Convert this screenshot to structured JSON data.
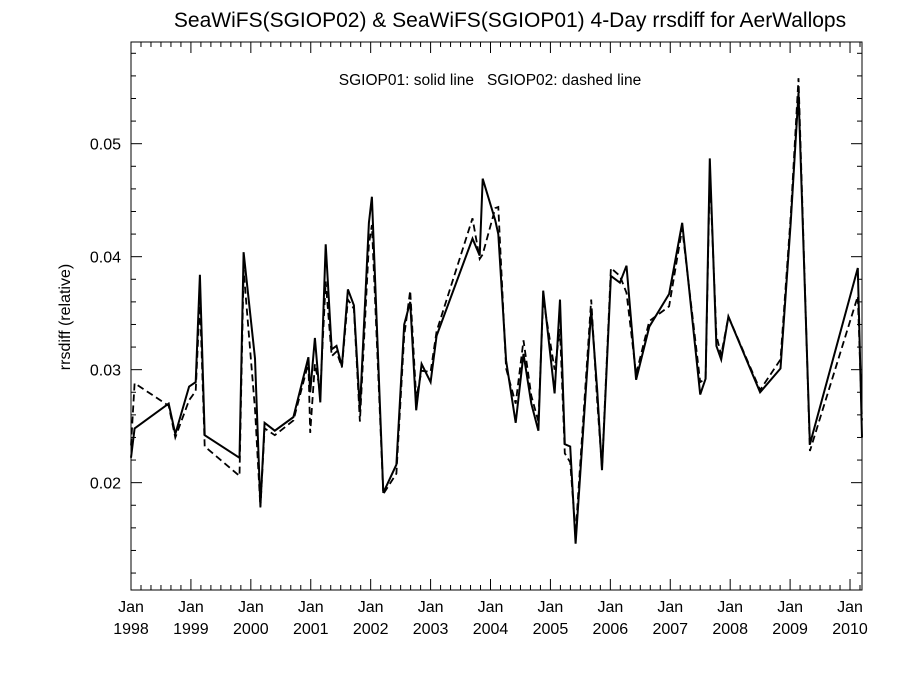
{
  "chart_data": {
    "type": "line",
    "title": "SeaWiFS(SGIOP02) & SeaWiFS(SGIOP01) 4-Day rrsdiff for AerWallops",
    "legend_text": "SGIOP01: solid line   SGIOP02: dashed line",
    "xlabel": "",
    "ylabel": "rrsdiff (relative)",
    "xlim": [
      1998.0,
      2010.2
    ],
    "ylim": [
      0.0105,
      0.059
    ],
    "grid": false,
    "x_ticks": [
      {
        "value": 1998,
        "line1": "Jan",
        "line2": "1998"
      },
      {
        "value": 1999,
        "line1": "Jan",
        "line2": "1999"
      },
      {
        "value": 2000,
        "line1": "Jan",
        "line2": "2000"
      },
      {
        "value": 2001,
        "line1": "Jan",
        "line2": "2001"
      },
      {
        "value": 2002,
        "line1": "Jan",
        "line2": "2002"
      },
      {
        "value": 2003,
        "line1": "Jan",
        "line2": "2003"
      },
      {
        "value": 2004,
        "line1": "Jan",
        "line2": "2004"
      },
      {
        "value": 2005,
        "line1": "Jan",
        "line2": "2005"
      },
      {
        "value": 2006,
        "line1": "Jan",
        "line2": "2006"
      },
      {
        "value": 2007,
        "line1": "Jan",
        "line2": "2007"
      },
      {
        "value": 2008,
        "line1": "Jan",
        "line2": "2008"
      },
      {
        "value": 2009,
        "line1": "Jan",
        "line2": "2009"
      },
      {
        "value": 2010,
        "line1": "Jan",
        "line2": "2010"
      }
    ],
    "y_ticks": [
      {
        "value": 0.02,
        "label": "0.02"
      },
      {
        "value": 0.03,
        "label": "0.03"
      },
      {
        "value": 0.04,
        "label": "0.04"
      },
      {
        "value": 0.05,
        "label": "0.05"
      }
    ],
    "series": [
      {
        "style": "solid",
        "color": "#000000",
        "points": [
          [
            1998.0,
            0.0222
          ],
          [
            1998.06,
            0.0248
          ],
          [
            1998.63,
            0.027
          ],
          [
            1998.74,
            0.0243
          ],
          [
            1998.97,
            0.0285
          ],
          [
            1999.08,
            0.0289
          ],
          [
            1999.15,
            0.0384
          ],
          [
            1999.23,
            0.0242
          ],
          [
            1999.81,
            0.0222
          ],
          [
            1999.88,
            0.0404
          ],
          [
            2000.07,
            0.031
          ],
          [
            2000.16,
            0.0179
          ],
          [
            2000.23,
            0.0253
          ],
          [
            2000.4,
            0.0246
          ],
          [
            2000.71,
            0.0258
          ],
          [
            2000.96,
            0.0311
          ],
          [
            2000.99,
            0.028
          ],
          [
            2001.07,
            0.0328
          ],
          [
            2001.16,
            0.0271
          ],
          [
            2001.25,
            0.0411
          ],
          [
            2001.35,
            0.0318
          ],
          [
            2001.43,
            0.0321
          ],
          [
            2001.52,
            0.0303
          ],
          [
            2001.62,
            0.0371
          ],
          [
            2001.72,
            0.0357
          ],
          [
            2001.82,
            0.0264
          ],
          [
            2001.97,
            0.043
          ],
          [
            2002.02,
            0.0453
          ],
          [
            2002.21,
            0.0191
          ],
          [
            2002.43,
            0.0216
          ],
          [
            2002.56,
            0.034
          ],
          [
            2002.66,
            0.036
          ],
          [
            2002.76,
            0.0264
          ],
          [
            2002.85,
            0.0305
          ],
          [
            2003.0,
            0.0289
          ],
          [
            2003.1,
            0.033
          ],
          [
            2003.7,
            0.0416
          ],
          [
            2003.82,
            0.0401
          ],
          [
            2003.87,
            0.0469
          ],
          [
            2004.08,
            0.0432
          ],
          [
            2004.13,
            0.042
          ],
          [
            2004.26,
            0.0308
          ],
          [
            2004.42,
            0.0253
          ],
          [
            2004.55,
            0.0314
          ],
          [
            2004.68,
            0.027
          ],
          [
            2004.8,
            0.0246
          ],
          [
            2004.88,
            0.037
          ],
          [
            2005.07,
            0.0279
          ],
          [
            2005.16,
            0.0362
          ],
          [
            2005.24,
            0.0234
          ],
          [
            2005.33,
            0.0232
          ],
          [
            2005.42,
            0.0146
          ],
          [
            2005.68,
            0.0353
          ],
          [
            2005.78,
            0.0282
          ],
          [
            2005.86,
            0.0211
          ],
          [
            2006.01,
            0.0383
          ],
          [
            2006.16,
            0.0377
          ],
          [
            2006.27,
            0.0392
          ],
          [
            2006.43,
            0.0291
          ],
          [
            2006.65,
            0.0338
          ],
          [
            2006.98,
            0.0367
          ],
          [
            2007.2,
            0.043
          ],
          [
            2007.5,
            0.0278
          ],
          [
            2007.59,
            0.0292
          ],
          [
            2007.66,
            0.0487
          ],
          [
            2007.77,
            0.0321
          ],
          [
            2007.85,
            0.0309
          ],
          [
            2007.97,
            0.0347
          ],
          [
            2008.5,
            0.028
          ],
          [
            2008.84,
            0.0301
          ],
          [
            2009.01,
            0.043
          ],
          [
            2009.14,
            0.0545
          ],
          [
            2009.33,
            0.0234
          ],
          [
            2010.13,
            0.039
          ],
          [
            2010.2,
            0.024
          ]
        ]
      },
      {
        "style": "dashed",
        "color": "#000000",
        "points": [
          [
            1998.0,
            0.0233
          ],
          [
            1998.06,
            0.0288
          ],
          [
            1998.63,
            0.0268
          ],
          [
            1998.74,
            0.024
          ],
          [
            1998.97,
            0.0273
          ],
          [
            1999.08,
            0.0281
          ],
          [
            1999.15,
            0.0362
          ],
          [
            1999.23,
            0.0232
          ],
          [
            1999.81,
            0.0206
          ],
          [
            1999.88,
            0.0388
          ],
          [
            2000.07,
            0.0265
          ],
          [
            2000.16,
            0.0178
          ],
          [
            2000.23,
            0.0248
          ],
          [
            2000.4,
            0.0242
          ],
          [
            2000.71,
            0.0255
          ],
          [
            2000.96,
            0.0306
          ],
          [
            2000.99,
            0.0244
          ],
          [
            2001.07,
            0.0305
          ],
          [
            2001.16,
            0.0281
          ],
          [
            2001.25,
            0.0378
          ],
          [
            2001.35,
            0.0312
          ],
          [
            2001.43,
            0.0316
          ],
          [
            2001.52,
            0.0302
          ],
          [
            2001.62,
            0.0362
          ],
          [
            2001.72,
            0.0354
          ],
          [
            2001.82,
            0.0254
          ],
          [
            2001.97,
            0.0411
          ],
          [
            2002.02,
            0.0428
          ],
          [
            2002.21,
            0.019
          ],
          [
            2002.43,
            0.0208
          ],
          [
            2002.56,
            0.033
          ],
          [
            2002.66,
            0.037
          ],
          [
            2002.76,
            0.0275
          ],
          [
            2002.85,
            0.0299
          ],
          [
            2003.0,
            0.0298
          ],
          [
            2003.1,
            0.0334
          ],
          [
            2003.7,
            0.0434
          ],
          [
            2003.82,
            0.0398
          ],
          [
            2003.87,
            0.0402
          ],
          [
            2004.08,
            0.0443
          ],
          [
            2004.13,
            0.0444
          ],
          [
            2004.26,
            0.0301
          ],
          [
            2004.42,
            0.027
          ],
          [
            2004.55,
            0.0326
          ],
          [
            2004.68,
            0.0277
          ],
          [
            2004.8,
            0.0254
          ],
          [
            2004.88,
            0.0363
          ],
          [
            2005.07,
            0.03
          ],
          [
            2005.16,
            0.0336
          ],
          [
            2005.24,
            0.0226
          ],
          [
            2005.33,
            0.0218
          ],
          [
            2005.42,
            0.0155
          ],
          [
            2005.68,
            0.0362
          ],
          [
            2005.78,
            0.0272
          ],
          [
            2005.86,
            0.0213
          ],
          [
            2006.01,
            0.039
          ],
          [
            2006.16,
            0.0383
          ],
          [
            2006.27,
            0.0368
          ],
          [
            2006.43,
            0.0296
          ],
          [
            2006.65,
            0.0343
          ],
          [
            2006.98,
            0.0356
          ],
          [
            2007.2,
            0.0425
          ],
          [
            2007.5,
            0.0289
          ],
          [
            2007.59,
            0.0292
          ],
          [
            2007.66,
            0.0475
          ],
          [
            2007.77,
            0.033
          ],
          [
            2007.85,
            0.0313
          ],
          [
            2007.97,
            0.0347
          ],
          [
            2008.5,
            0.0282
          ],
          [
            2008.84,
            0.0309
          ],
          [
            2009.01,
            0.0436
          ],
          [
            2009.14,
            0.0558
          ],
          [
            2009.33,
            0.0228
          ],
          [
            2010.13,
            0.0365
          ],
          [
            2010.2,
            0.0255
          ]
        ]
      }
    ]
  }
}
